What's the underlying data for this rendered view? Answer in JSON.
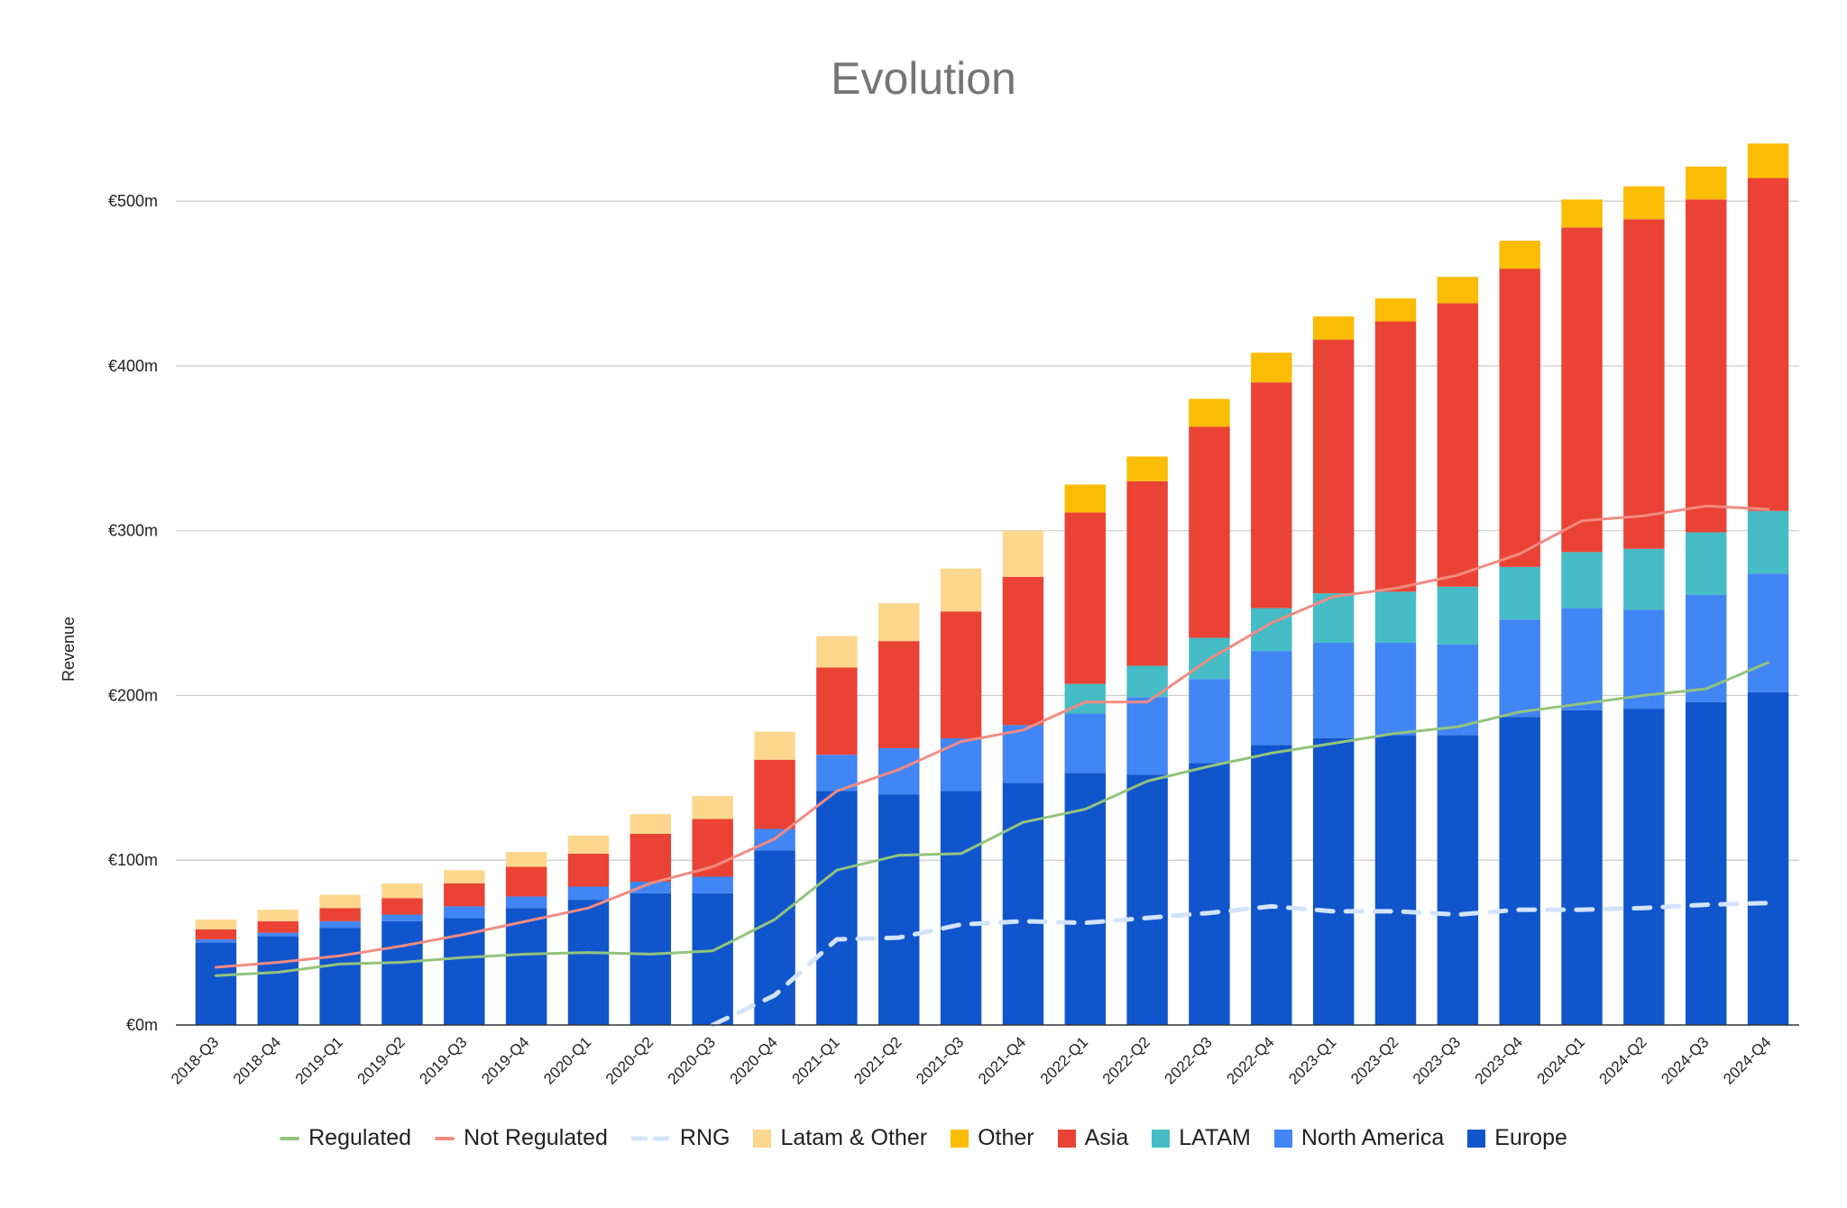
{
  "chart_data": {
    "type": "bar",
    "title": "Evolution",
    "ylabel": "Revenue",
    "xlabel": "",
    "ylim": [
      0,
      540
    ],
    "yticks": [
      {
        "value": 0,
        "label": "€0m"
      },
      {
        "value": 100,
        "label": "€100m"
      },
      {
        "value": 200,
        "label": "€200m"
      },
      {
        "value": 300,
        "label": "€300m"
      },
      {
        "value": 400,
        "label": "€400m"
      },
      {
        "value": 500,
        "label": "€500m"
      }
    ],
    "grid": true,
    "legend_position": "bottom",
    "stacked": true,
    "categories": [
      "2018-Q3",
      "2018-Q4",
      "2019-Q1",
      "2019-Q2",
      "2019-Q3",
      "2019-Q4",
      "2020-Q1",
      "2020-Q2",
      "2020-Q3",
      "2020-Q4",
      "2021-Q1",
      "2021-Q2",
      "2021-Q3",
      "2021-Q4",
      "2022-Q1",
      "2022-Q2",
      "2022-Q3",
      "2022-Q4",
      "2023-Q1",
      "2023-Q2",
      "2023-Q3",
      "2023-Q4",
      "2024-Q1",
      "2024-Q2",
      "2024-Q3",
      "2024-Q4"
    ],
    "bar_series": [
      {
        "name": "Europe",
        "color": "#1155cc",
        "values": [
          50,
          54,
          59,
          63,
          65,
          71,
          76,
          80,
          80,
          106,
          142,
          140,
          142,
          147,
          153,
          152,
          159,
          170,
          174,
          176,
          176,
          187,
          191,
          192,
          196,
          202
        ]
      },
      {
        "name": "North America",
        "color": "#4285f4",
        "values": [
          2,
          2,
          4,
          4,
          7,
          7,
          8,
          7,
          10,
          13,
          22,
          28,
          32,
          35,
          36,
          47,
          51,
          57,
          58,
          56,
          55,
          59,
          62,
          60,
          65,
          72
        ]
      },
      {
        "name": "LATAM",
        "color": "#46bdc6",
        "values": [
          0,
          0,
          0,
          0,
          0,
          0,
          0,
          0,
          0,
          0,
          0,
          0,
          0,
          0,
          18,
          19,
          25,
          26,
          30,
          31,
          35,
          32,
          34,
          37,
          38,
          38
        ]
      },
      {
        "name": "Asia",
        "color": "#ea4335",
        "values": [
          6,
          7,
          8,
          10,
          14,
          18,
          20,
          29,
          35,
          42,
          53,
          65,
          77,
          90,
          104,
          112,
          128,
          137,
          154,
          164,
          172,
          181,
          197,
          200,
          202,
          202
        ]
      },
      {
        "name": "Other",
        "color": "#fbbc04",
        "values": [
          0,
          0,
          0,
          0,
          0,
          0,
          0,
          0,
          0,
          0,
          0,
          0,
          0,
          0,
          17,
          15,
          17,
          18,
          14,
          14,
          16,
          17,
          17,
          20,
          20,
          21
        ]
      },
      {
        "name": "Latam & Other",
        "color": "#fed78f",
        "values": [
          6,
          7,
          8,
          9,
          8,
          9,
          11,
          12,
          14,
          17,
          19,
          23,
          26,
          28,
          0,
          0,
          0,
          0,
          0,
          0,
          0,
          0,
          0,
          0,
          0,
          0
        ]
      }
    ],
    "line_series": [
      {
        "name": "Regulated",
        "color": "#93c47d",
        "dash": false,
        "values": [
          30,
          32,
          37,
          38,
          41,
          43,
          44,
          43,
          45,
          64,
          94,
          103,
          104,
          123,
          131,
          148,
          157,
          165,
          171,
          177,
          181,
          190,
          195,
          200,
          204,
          220
        ]
      },
      {
        "name": "Not Regulated",
        "color": "#f28b82",
        "dash": false,
        "values": [
          35,
          38,
          42,
          48,
          55,
          63,
          71,
          86,
          96,
          113,
          142,
          155,
          172,
          179,
          196,
          196,
          222,
          244,
          260,
          265,
          273,
          286,
          306,
          309,
          315,
          313
        ]
      },
      {
        "name": "RNG",
        "color": "#d2e3fc",
        "dash": true,
        "values": [
          null,
          null,
          null,
          null,
          null,
          null,
          null,
          null,
          0,
          18,
          52,
          53,
          61,
          63,
          62,
          65,
          68,
          72,
          69,
          69,
          67,
          70,
          70,
          71,
          73,
          74
        ]
      }
    ],
    "legend": [
      "Regulated",
      "Not Regulated",
      "RNG",
      "Latam & Other",
      "Other",
      "Asia",
      "LATAM",
      "North America",
      "Europe"
    ]
  }
}
